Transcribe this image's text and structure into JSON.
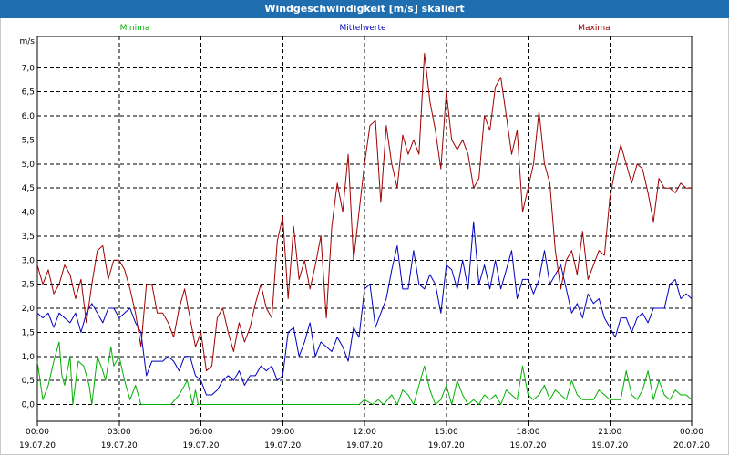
{
  "window": {
    "title": "Windgeschwindigkeit [m/s] skaliert"
  },
  "colors": {
    "titlebar": "#1f6fb0",
    "min": "#00b000",
    "mean": "#0000c0",
    "max": "#a00000",
    "grid": "#000000"
  },
  "chart_data": {
    "type": "line",
    "title": "Windgeschwindigkeit [m/s] skaliert",
    "ylabel": "m/s",
    "xlabel": "",
    "ylim": [
      -0.35,
      7.65
    ],
    "xlim_hours": [
      0,
      24
    ],
    "grid": true,
    "legend_position": "top",
    "yticks": [
      "0,0",
      "0,5",
      "1,0",
      "1,5",
      "2,0",
      "2,5",
      "3,0",
      "3,5",
      "4,0",
      "4,5",
      "5,0",
      "5,5",
      "6,0",
      "6,5",
      "7,0"
    ],
    "xticks": [
      {
        "time": "00:00",
        "date": "19.07.20"
      },
      {
        "time": "03:00",
        "date": "19.07.20"
      },
      {
        "time": "06:00",
        "date": "19.07.20"
      },
      {
        "time": "09:00",
        "date": "19.07.20"
      },
      {
        "time": "12:00",
        "date": "19.07.20"
      },
      {
        "time": "15:00",
        "date": "19.07.20"
      },
      {
        "time": "18:00",
        "date": "19.07.20"
      },
      {
        "time": "21:00",
        "date": "19.07.20"
      },
      {
        "time": "00:00",
        "date": "20.07.20"
      }
    ],
    "series": [
      {
        "name": "Minima",
        "color": "#00b000",
        "x": [
          0,
          0.2,
          0.4,
          0.6,
          0.8,
          0.9,
          1.0,
          1.2,
          1.3,
          1.5,
          1.7,
          1.9,
          2.0,
          2.2,
          2.4,
          2.5,
          2.7,
          2.8,
          3.0,
          3.2,
          3.4,
          3.6,
          3.8,
          4.0,
          4.3,
          4.6,
          4.9,
          5.2,
          5.5,
          5.7,
          5.8,
          5.9,
          6.0,
          6.2,
          6.5,
          7,
          7.5,
          8,
          8.5,
          9,
          9.5,
          10,
          10.5,
          11,
          11.5,
          11.8,
          12.0,
          12.3,
          12.5,
          12.7,
          13.0,
          13.2,
          13.4,
          13.6,
          13.8,
          14.0,
          14.2,
          14.4,
          14.6,
          14.8,
          15.0,
          15.2,
          15.4,
          15.6,
          15.8,
          16.0,
          16.2,
          16.4,
          16.6,
          16.8,
          17.0,
          17.2,
          17.4,
          17.6,
          17.8,
          18.0,
          18.2,
          18.4,
          18.6,
          18.8,
          19.0,
          19.2,
          19.4,
          19.6,
          19.8,
          20.0,
          20.2,
          20.4,
          20.6,
          20.8,
          21.0,
          21.2,
          21.4,
          21.6,
          21.8,
          22.0,
          22.2,
          22.4,
          22.6,
          22.8,
          23.0,
          23.2,
          23.4,
          23.6,
          23.8,
          24.0
        ],
        "values": [
          0.9,
          0.1,
          0.4,
          0.9,
          1.3,
          0.6,
          0.4,
          1.0,
          0.0,
          0.9,
          0.8,
          0.4,
          0.0,
          1.0,
          0.7,
          0.5,
          1.2,
          0.8,
          1.0,
          0.5,
          0.1,
          0.4,
          0.0,
          0.0,
          0.0,
          0.0,
          0.0,
          0.2,
          0.5,
          0.0,
          0.3,
          0.0,
          0.0,
          0.0,
          0.0,
          0.0,
          0.0,
          0.0,
          0.0,
          0.0,
          0.0,
          0.0,
          0.0,
          0.0,
          0.0,
          0.0,
          0.1,
          0.0,
          0.1,
          0.0,
          0.2,
          0.0,
          0.3,
          0.2,
          0.0,
          0.4,
          0.8,
          0.3,
          0.0,
          0.1,
          0.4,
          0.0,
          0.5,
          0.2,
          0.0,
          0.1,
          0.0,
          0.2,
          0.1,
          0.2,
          0.0,
          0.3,
          0.2,
          0.1,
          0.8,
          0.2,
          0.1,
          0.2,
          0.4,
          0.1,
          0.3,
          0.2,
          0.1,
          0.5,
          0.2,
          0.1,
          0.1,
          0.1,
          0.3,
          0.2,
          0.1,
          0.1,
          0.1,
          0.7,
          0.2,
          0.1,
          0.3,
          0.7,
          0.1,
          0.5,
          0.2,
          0.1,
          0.3,
          0.2,
          0.2,
          0.1
        ]
      },
      {
        "name": "Mittelwerte",
        "color": "#0000c0",
        "x": [
          0,
          0.2,
          0.4,
          0.6,
          0.8,
          1.0,
          1.2,
          1.4,
          1.6,
          1.8,
          2.0,
          2.2,
          2.4,
          2.6,
          2.8,
          3.0,
          3.2,
          3.4,
          3.6,
          3.8,
          4.0,
          4.2,
          4.4,
          4.6,
          4.8,
          5.0,
          5.2,
          5.4,
          5.6,
          5.8,
          6.0,
          6.2,
          6.4,
          6.6,
          6.8,
          7.0,
          7.2,
          7.4,
          7.6,
          7.8,
          8.0,
          8.2,
          8.4,
          8.6,
          8.8,
          9.0,
          9.2,
          9.4,
          9.6,
          9.8,
          10.0,
          10.2,
          10.4,
          10.6,
          10.8,
          11.0,
          11.2,
          11.4,
          11.6,
          11.8,
          12.0,
          12.2,
          12.4,
          12.6,
          12.8,
          13.0,
          13.2,
          13.4,
          13.6,
          13.8,
          14.0,
          14.2,
          14.4,
          14.6,
          14.8,
          15.0,
          15.2,
          15.4,
          15.6,
          15.8,
          16.0,
          16.2,
          16.4,
          16.6,
          16.8,
          17.0,
          17.2,
          17.4,
          17.6,
          17.8,
          18.0,
          18.2,
          18.4,
          18.6,
          18.8,
          19.0,
          19.2,
          19.4,
          19.6,
          19.8,
          20.0,
          20.2,
          20.4,
          20.6,
          20.8,
          21.0,
          21.2,
          21.4,
          21.6,
          21.8,
          22.0,
          22.2,
          22.4,
          22.6,
          22.8,
          23.0,
          23.2,
          23.4,
          23.6,
          23.8,
          24.0
        ],
        "values": [
          1.9,
          1.8,
          1.9,
          1.6,
          1.9,
          1.8,
          1.7,
          1.9,
          1.5,
          1.9,
          2.1,
          1.9,
          1.7,
          2.0,
          2.0,
          1.8,
          1.9,
          2.0,
          1.7,
          1.5,
          0.6,
          0.9,
          0.9,
          0.9,
          1.0,
          0.9,
          0.7,
          1.0,
          1.0,
          0.6,
          0.5,
          0.2,
          0.2,
          0.3,
          0.5,
          0.6,
          0.5,
          0.7,
          0.4,
          0.6,
          0.6,
          0.8,
          0.7,
          0.8,
          0.5,
          0.6,
          1.5,
          1.6,
          1.0,
          1.3,
          1.7,
          1.0,
          1.3,
          1.2,
          1.1,
          1.4,
          1.2,
          0.9,
          1.6,
          1.4,
          2.4,
          2.5,
          1.6,
          1.9,
          2.2,
          2.8,
          3.3,
          2.4,
          2.4,
          3.2,
          2.5,
          2.4,
          2.7,
          2.5,
          1.9,
          2.9,
          2.8,
          2.4,
          3.0,
          2.4,
          3.8,
          2.5,
          2.9,
          2.4,
          3.0,
          2.4,
          2.8,
          3.2,
          2.2,
          2.6,
          2.6,
          2.3,
          2.6,
          3.2,
          2.5,
          2.7,
          2.9,
          2.4,
          1.9,
          2.1,
          1.8,
          2.3,
          2.1,
          2.2,
          1.8,
          1.6,
          1.4,
          1.8,
          1.8,
          1.5,
          1.8,
          1.9,
          1.7,
          2.0,
          2.0,
          2.0,
          2.5,
          2.6,
          2.2,
          2.3,
          2.2
        ],
        "note_values_marker_end": ""
      },
      {
        "name": "Maxima",
        "color": "#a00000",
        "x": [
          0,
          0.2,
          0.4,
          0.6,
          0.8,
          1.0,
          1.2,
          1.4,
          1.6,
          1.8,
          2.0,
          2.2,
          2.4,
          2.6,
          2.8,
          3.0,
          3.2,
          3.4,
          3.6,
          3.8,
          4.0,
          4.2,
          4.4,
          4.6,
          4.8,
          5.0,
          5.2,
          5.4,
          5.6,
          5.8,
          6.0,
          6.2,
          6.4,
          6.6,
          6.8,
          7.0,
          7.2,
          7.4,
          7.6,
          7.8,
          8.0,
          8.2,
          8.4,
          8.6,
          8.8,
          9.0,
          9.2,
          9.4,
          9.6,
          9.8,
          10.0,
          10.2,
          10.4,
          10.6,
          10.8,
          11.0,
          11.2,
          11.4,
          11.6,
          11.8,
          12.0,
          12.2,
          12.4,
          12.6,
          12.8,
          13.0,
          13.2,
          13.4,
          13.6,
          13.8,
          14.0,
          14.2,
          14.4,
          14.6,
          14.8,
          15.0,
          15.2,
          15.4,
          15.6,
          15.8,
          16.0,
          16.2,
          16.4,
          16.6,
          16.8,
          17.0,
          17.2,
          17.4,
          17.6,
          17.8,
          18.0,
          18.2,
          18.4,
          18.6,
          18.8,
          19.0,
          19.2,
          19.4,
          19.6,
          19.8,
          20.0,
          20.2,
          20.4,
          20.6,
          20.8,
          21.0,
          21.2,
          21.4,
          21.6,
          21.8,
          22.0,
          22.2,
          22.4,
          22.6,
          22.8,
          23.0,
          23.2,
          23.4,
          23.6,
          23.8,
          24.0
        ],
        "values": [
          2.9,
          2.5,
          2.8,
          2.3,
          2.5,
          2.9,
          2.7,
          2.2,
          2.6,
          1.7,
          2.5,
          3.2,
          3.3,
          2.6,
          3.0,
          3.0,
          2.8,
          2.4,
          1.9,
          1.2,
          2.5,
          2.5,
          1.9,
          1.9,
          1.7,
          1.4,
          2.0,
          2.4,
          1.8,
          1.2,
          1.5,
          0.7,
          0.8,
          1.8,
          2.0,
          1.5,
          1.1,
          1.7,
          1.3,
          1.6,
          2.1,
          2.5,
          2.0,
          1.8,
          3.4,
          3.9,
          2.2,
          3.7,
          2.6,
          3.0,
          2.4,
          2.9,
          3.5,
          1.8,
          3.7,
          4.6,
          4.0,
          5.2,
          3.0,
          4.0,
          5.0,
          5.8,
          5.9,
          4.2,
          5.8,
          5.0,
          4.5,
          5.6,
          5.2,
          5.5,
          5.2,
          7.3,
          6.3,
          5.7,
          4.9,
          6.5,
          5.5,
          5.3,
          5.5,
          5.2,
          4.5,
          4.7,
          6.0,
          5.7,
          6.6,
          6.8,
          6.0,
          5.2,
          5.7,
          4.0,
          4.5,
          5.0,
          6.1,
          5.0,
          4.6,
          3.2,
          2.4,
          3.0,
          3.2,
          2.7,
          3.6,
          2.6,
          2.9,
          3.2,
          3.1,
          4.3,
          4.9,
          5.4,
          5.0,
          4.6,
          5.0,
          4.9,
          4.4,
          3.8,
          4.7,
          4.5,
          4.5,
          4.4,
          4.6,
          4.5,
          4.5
        ]
      }
    ]
  }
}
